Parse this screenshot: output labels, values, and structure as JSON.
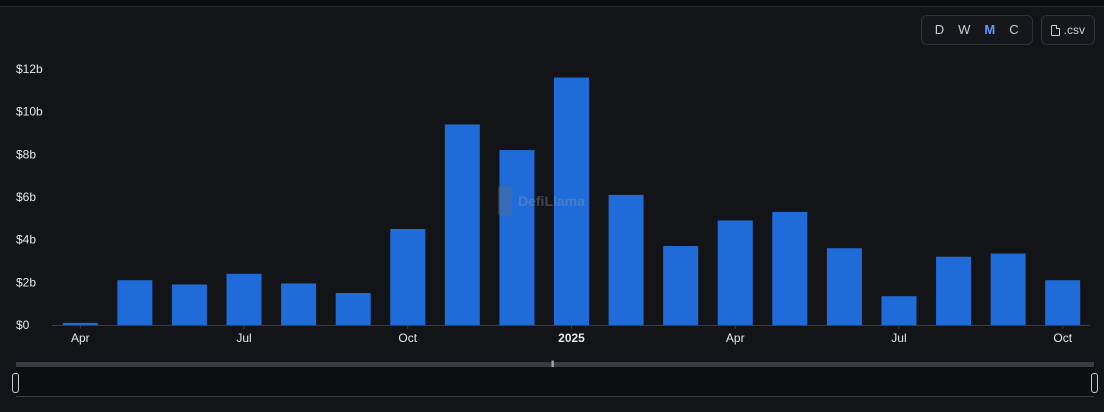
{
  "toolbar": {
    "granularity": [
      {
        "label": "D",
        "active": false
      },
      {
        "label": "W",
        "active": false
      },
      {
        "label": "M",
        "active": true
      },
      {
        "label": "C",
        "active": false
      }
    ],
    "csv_label": ".csv",
    "csv_icon": "file-icon"
  },
  "watermark": {
    "text": "DefiLlama"
  },
  "colors": {
    "bar": "#1f6bd9",
    "accent": "#5a9bff",
    "background": "#131417"
  },
  "chart_data": {
    "type": "bar",
    "title": "",
    "xlabel": "",
    "ylabel": "",
    "categories": [
      "2024-04",
      "2024-05",
      "2024-06",
      "2024-07",
      "2024-08",
      "2024-09",
      "2024-10",
      "2024-11",
      "2024-12",
      "2025-01",
      "2025-02",
      "2025-03",
      "2025-04",
      "2025-05",
      "2025-06",
      "2025-07",
      "2025-08",
      "2025-09",
      "2025-10"
    ],
    "values": [
      0.1,
      2.1,
      1.9,
      2.4,
      1.95,
      1.5,
      4.5,
      9.4,
      8.2,
      11.6,
      6.1,
      3.7,
      4.9,
      5.3,
      3.6,
      1.35,
      3.2,
      3.35,
      2.1
    ],
    "unit": "USD billions",
    "ylim": [
      0,
      12
    ],
    "y_ticks": [
      "$0",
      "$2b",
      "$4b",
      "$6b",
      "$8b",
      "$10b",
      "$12b"
    ],
    "x_tick_labels": [
      {
        "index": 0,
        "label": "Apr",
        "bold": false
      },
      {
        "index": 3,
        "label": "Jul",
        "bold": false
      },
      {
        "index": 6,
        "label": "Oct",
        "bold": false
      },
      {
        "index": 9,
        "label": "2025",
        "bold": true
      },
      {
        "index": 12,
        "label": "Apr",
        "bold": false
      },
      {
        "index": 15,
        "label": "Jul",
        "bold": false
      },
      {
        "index": 18,
        "label": "Oct",
        "bold": false
      }
    ],
    "grid": false,
    "legend": "none"
  }
}
